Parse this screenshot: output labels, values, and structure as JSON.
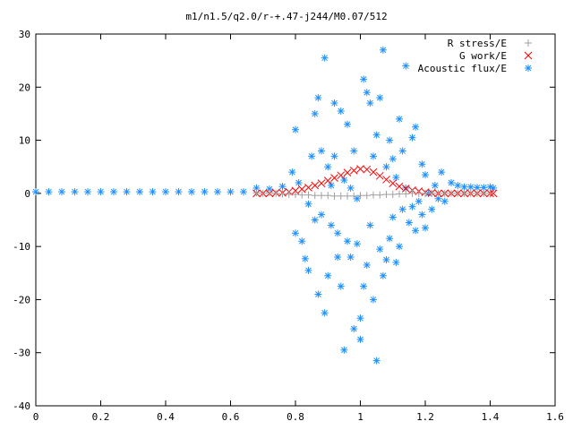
{
  "chart_data": {
    "type": "scatter",
    "title": "m1/n1.5/q2.0/r-+.47-j244/M0.07/512",
    "xlabel": "",
    "ylabel": "",
    "xlim": [
      0,
      1.6
    ],
    "ylim": [
      -40,
      30
    ],
    "x_ticks": [
      0,
      0.2,
      0.4,
      0.6,
      0.8,
      1,
      1.2,
      1.4,
      1.6
    ],
    "x_tick_labels": [
      "0",
      "0.2",
      "0.4",
      "0.6",
      "0.8",
      "1",
      "1.2",
      "1.4",
      "1.6"
    ],
    "y_ticks": [
      -40,
      -30,
      -20,
      -10,
      0,
      10,
      20,
      30
    ],
    "y_tick_labels": [
      "-40",
      "-30",
      "-20",
      "-10",
      "0",
      "10",
      "20",
      "30"
    ],
    "grid": false,
    "legend_position": "top-right",
    "series": [
      {
        "name": "R stress/E",
        "marker": "plus",
        "color": "#a0a0a0",
        "points": [
          [
            0.68,
            0.1
          ],
          [
            0.7,
            0.0
          ],
          [
            0.72,
            0.1
          ],
          [
            0.74,
            0.0
          ],
          [
            0.76,
            -0.1
          ],
          [
            0.78,
            -0.2
          ],
          [
            0.8,
            -0.2
          ],
          [
            0.82,
            -0.3
          ],
          [
            0.84,
            -0.3
          ],
          [
            0.86,
            -0.4
          ],
          [
            0.88,
            -0.4
          ],
          [
            0.9,
            -0.4
          ],
          [
            0.92,
            -0.5
          ],
          [
            0.94,
            -0.5
          ],
          [
            0.96,
            -0.5
          ],
          [
            0.98,
            -0.5
          ],
          [
            1.0,
            -0.4
          ],
          [
            1.02,
            -0.4
          ],
          [
            1.04,
            -0.3
          ],
          [
            1.06,
            -0.3
          ],
          [
            1.08,
            -0.2
          ],
          [
            1.1,
            -0.2
          ],
          [
            1.12,
            -0.1
          ],
          [
            1.14,
            -0.1
          ],
          [
            1.16,
            0.0
          ],
          [
            1.18,
            0.0
          ],
          [
            1.2,
            0.0
          ],
          [
            1.22,
            0.0
          ],
          [
            1.24,
            0.0
          ],
          [
            1.26,
            0.0
          ],
          [
            1.28,
            0.0
          ],
          [
            1.3,
            0.0
          ],
          [
            1.32,
            0.0
          ],
          [
            1.34,
            0.0
          ],
          [
            1.36,
            0.0
          ],
          [
            1.38,
            0.0
          ],
          [
            1.4,
            0.0
          ]
        ]
      },
      {
        "name": "G work/E",
        "marker": "cross",
        "color": "#ff0000",
        "points": [
          [
            0.68,
            0.0
          ],
          [
            0.7,
            0.0
          ],
          [
            0.72,
            0.0
          ],
          [
            0.74,
            0.1
          ],
          [
            0.76,
            0.1
          ],
          [
            0.78,
            0.3
          ],
          [
            0.8,
            0.5
          ],
          [
            0.82,
            0.8
          ],
          [
            0.84,
            1.1
          ],
          [
            0.86,
            1.5
          ],
          [
            0.88,
            1.9
          ],
          [
            0.9,
            2.4
          ],
          [
            0.92,
            2.9
          ],
          [
            0.94,
            3.4
          ],
          [
            0.96,
            3.9
          ],
          [
            0.98,
            4.3
          ],
          [
            1.0,
            4.6
          ],
          [
            1.02,
            4.5
          ],
          [
            1.04,
            4.0
          ],
          [
            1.06,
            3.3
          ],
          [
            1.08,
            2.6
          ],
          [
            1.1,
            1.9
          ],
          [
            1.12,
            1.3
          ],
          [
            1.14,
            0.9
          ],
          [
            1.16,
            0.6
          ],
          [
            1.18,
            0.4
          ],
          [
            1.2,
            0.2
          ],
          [
            1.22,
            0.1
          ],
          [
            1.24,
            0.0
          ],
          [
            1.26,
            0.0
          ],
          [
            1.28,
            0.0
          ],
          [
            1.3,
            0.0
          ],
          [
            1.32,
            0.0
          ],
          [
            1.34,
            0.0
          ],
          [
            1.36,
            0.0
          ],
          [
            1.38,
            0.0
          ],
          [
            1.4,
            0.0
          ],
          [
            1.41,
            0.0
          ]
        ]
      },
      {
        "name": "Acoustic flux/E",
        "marker": "star",
        "color": "#1e90ff",
        "points": [
          [
            0.0,
            0.3
          ],
          [
            0.04,
            0.3
          ],
          [
            0.08,
            0.3
          ],
          [
            0.12,
            0.3
          ],
          [
            0.16,
            0.3
          ],
          [
            0.2,
            0.3
          ],
          [
            0.24,
            0.3
          ],
          [
            0.28,
            0.3
          ],
          [
            0.32,
            0.3
          ],
          [
            0.36,
            0.3
          ],
          [
            0.4,
            0.3
          ],
          [
            0.44,
            0.3
          ],
          [
            0.48,
            0.3
          ],
          [
            0.52,
            0.3
          ],
          [
            0.56,
            0.3
          ],
          [
            0.6,
            0.3
          ],
          [
            0.64,
            0.3
          ],
          [
            0.68,
            1.0
          ],
          [
            0.72,
            0.8
          ],
          [
            0.76,
            1.3
          ],
          [
            0.79,
            4.0
          ],
          [
            0.8,
            12.0
          ],
          [
            0.8,
            -7.5
          ],
          [
            0.81,
            2.0
          ],
          [
            0.82,
            -9.0
          ],
          [
            0.83,
            -12.3
          ],
          [
            0.84,
            -2.0
          ],
          [
            0.84,
            -14.5
          ],
          [
            0.85,
            7.0
          ],
          [
            0.86,
            15.0
          ],
          [
            0.86,
            -5.0
          ],
          [
            0.87,
            18.0
          ],
          [
            0.87,
            -19.0
          ],
          [
            0.88,
            8.0
          ],
          [
            0.88,
            -4.0
          ],
          [
            0.89,
            25.5
          ],
          [
            0.89,
            -22.5
          ],
          [
            0.9,
            -15.5
          ],
          [
            0.9,
            5.0
          ],
          [
            0.91,
            1.5
          ],
          [
            0.91,
            -6.0
          ],
          [
            0.92,
            17.0
          ],
          [
            0.92,
            7.0
          ],
          [
            0.93,
            -7.5
          ],
          [
            0.93,
            -12.0
          ],
          [
            0.94,
            15.5
          ],
          [
            0.94,
            -17.5
          ],
          [
            0.95,
            2.5
          ],
          [
            0.95,
            -29.5
          ],
          [
            0.96,
            13.0
          ],
          [
            0.96,
            -9.0
          ],
          [
            0.97,
            1.0
          ],
          [
            0.97,
            -12.0
          ],
          [
            0.98,
            8.0
          ],
          [
            0.98,
            -25.5
          ],
          [
            0.99,
            -1.0
          ],
          [
            0.99,
            -9.5
          ],
          [
            1.0,
            -23.5
          ],
          [
            1.0,
            -27.5
          ],
          [
            1.01,
            21.5
          ],
          [
            1.01,
            -17.5
          ],
          [
            1.02,
            19.0
          ],
          [
            1.02,
            -13.5
          ],
          [
            1.03,
            17.0
          ],
          [
            1.03,
            -6.0
          ],
          [
            1.04,
            7.0
          ],
          [
            1.04,
            -20.0
          ],
          [
            1.05,
            11.0
          ],
          [
            1.05,
            -31.5
          ],
          [
            1.06,
            18.0
          ],
          [
            1.06,
            -10.5
          ],
          [
            1.07,
            27.0
          ],
          [
            1.07,
            -15.5
          ],
          [
            1.08,
            5.0
          ],
          [
            1.08,
            -12.5
          ],
          [
            1.09,
            10.0
          ],
          [
            1.09,
            -8.5
          ],
          [
            1.1,
            6.5
          ],
          [
            1.1,
            -4.5
          ],
          [
            1.11,
            3.0
          ],
          [
            1.11,
            -13.0
          ],
          [
            1.12,
            14.0
          ],
          [
            1.12,
            -10.0
          ],
          [
            1.13,
            8.0
          ],
          [
            1.13,
            -3.0
          ],
          [
            1.14,
            24.0
          ],
          [
            1.14,
            1.0
          ],
          [
            1.15,
            -5.5
          ],
          [
            1.16,
            10.5
          ],
          [
            1.16,
            -2.5
          ],
          [
            1.17,
            12.5
          ],
          [
            1.17,
            -7.0
          ],
          [
            1.18,
            -1.5
          ],
          [
            1.19,
            5.5
          ],
          [
            1.19,
            -4.0
          ],
          [
            1.2,
            3.5
          ],
          [
            1.2,
            -6.5
          ],
          [
            1.21,
            0.0
          ],
          [
            1.22,
            -3.0
          ],
          [
            1.23,
            1.5
          ],
          [
            1.24,
            -1.0
          ],
          [
            1.25,
            4.0
          ],
          [
            1.26,
            -1.5
          ],
          [
            1.28,
            2.0
          ],
          [
            1.3,
            1.5
          ],
          [
            1.32,
            1.2
          ],
          [
            1.34,
            1.2
          ],
          [
            1.36,
            1.1
          ],
          [
            1.38,
            1.1
          ],
          [
            1.4,
            1.2
          ],
          [
            1.41,
            1.0
          ]
        ]
      }
    ]
  }
}
